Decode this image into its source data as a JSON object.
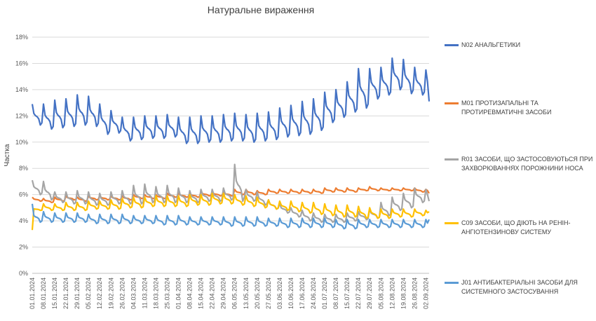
{
  "chart_data": {
    "type": "line",
    "title": "Натуральне вираження",
    "ylabel": "Частка",
    "xlabel": "",
    "ylim": [
      0,
      18
    ],
    "yticks": [
      "0%",
      "2%",
      "4%",
      "6%",
      "8%",
      "10%",
      "12%",
      "14%",
      "16%",
      "18%"
    ],
    "grid": true,
    "legend_position": "right",
    "x_start": "01.01.2024",
    "x_end": "04.09.2024",
    "x_tick_labels": [
      "01.01.2024",
      "08.01.2024",
      "15.01.2024",
      "22.01.2024",
      "29.01.2024",
      "05.02.2024",
      "12.02.2024",
      "19.02.2024",
      "26.02.2024",
      "04.03.2024",
      "11.03.2024",
      "18.03.2024",
      "25.03.2024",
      "01.04.2024",
      "08.04.2024",
      "15.04.2024",
      "22.04.2024",
      "29.04.2024",
      "06.05.2024",
      "13.05.2024",
      "20.05.2024",
      "27.05.2024",
      "03.06.2024",
      "10.06.2024",
      "17.06.2024",
      "24.06.2024",
      "01.07.2024",
      "08.07.2024",
      "15.07.2024",
      "22.07.2024",
      "29.07.2024",
      "05.08.2024",
      "12.08.2024",
      "19.08.2024",
      "26.08.2024",
      "02.09.2024"
    ],
    "weekly_x": [
      "01.01.2024",
      "08.01.2024",
      "15.01.2024",
      "22.01.2024",
      "29.01.2024",
      "05.02.2024",
      "12.02.2024",
      "19.02.2024",
      "26.02.2024",
      "04.03.2024",
      "11.03.2024",
      "18.03.2024",
      "25.03.2024",
      "01.04.2024",
      "08.04.2024",
      "15.04.2024",
      "22.04.2024",
      "29.04.2024",
      "06.05.2024",
      "13.05.2024",
      "20.05.2024",
      "27.05.2024",
      "03.06.2024",
      "10.06.2024",
      "17.06.2024",
      "24.06.2024",
      "01.07.2024",
      "08.07.2024",
      "15.07.2024",
      "22.07.2024",
      "29.07.2024",
      "05.08.2024",
      "12.08.2024",
      "19.08.2024",
      "26.08.2024",
      "02.09.2024"
    ],
    "series": [
      {
        "name": "N02 АНАЛЬГЕТИКИ",
        "color": "#4472C4",
        "weekly_base": [
          11.3,
          11.0,
          11.1,
          11.2,
          11.3,
          11.2,
          10.6,
          10.7,
          10.1,
          10.2,
          10.3,
          10.3,
          10.4,
          9.9,
          9.9,
          10.0,
          10.0,
          10.1,
          10.1,
          10.0,
          10.1,
          10.2,
          10.4,
          10.5,
          10.6,
          10.9,
          11.5,
          11.9,
          12.3,
          12.6,
          13.3,
          13.6,
          14.0,
          13.7,
          13.6,
          13.5
        ],
        "weekly_peak": [
          12.9,
          12.9,
          13.2,
          13.3,
          13.6,
          13.5,
          12.9,
          12.4,
          11.9,
          11.9,
          12.0,
          12.0,
          12.1,
          11.9,
          11.9,
          12.0,
          12.0,
          12.1,
          12.2,
          12.1,
          12.2,
          12.3,
          12.6,
          12.8,
          13.1,
          13.3,
          13.8,
          14.0,
          14.6,
          15.6,
          15.6,
          15.7,
          16.4,
          16.3,
          15.7,
          15.5
        ],
        "last_value": 13.1
      },
      {
        "name": "M01 ПРОТИЗАПАЛЬНІ ТА ПРОТИРЕВМАТИЧНІ ЗАСОБИ",
        "color": "#ED7D31",
        "weekly_base": [
          5.5,
          5.4,
          5.5,
          5.6,
          5.5,
          5.6,
          5.6,
          5.6,
          5.6,
          5.7,
          5.7,
          5.7,
          5.8,
          5.8,
          5.8,
          5.9,
          5.9,
          5.9,
          6.0,
          6.0,
          6.0,
          6.1,
          6.1,
          6.1,
          6.1,
          6.1,
          6.2,
          6.2,
          6.2,
          6.3,
          6.3,
          6.3,
          6.3,
          6.3,
          6.2,
          6.2
        ],
        "weekly_peak": [
          5.8,
          5.7,
          5.8,
          5.9,
          5.8,
          5.9,
          5.9,
          5.9,
          5.9,
          6.0,
          6.0,
          6.0,
          6.1,
          6.1,
          6.1,
          6.2,
          6.2,
          6.2,
          6.4,
          6.4,
          6.3,
          6.4,
          6.4,
          6.4,
          6.4,
          6.4,
          6.5,
          6.5,
          6.5,
          6.5,
          6.6,
          6.5,
          6.5,
          6.5,
          6.5,
          6.4
        ],
        "last_value": 6.1
      },
      {
        "name": "R01 ЗАСОБИ, ЩО ЗАСТОСОВУЮТЬСЯ ПРИ ЗАХВОРЮВАННЯХ ПОРОЖНИНИ НОСА",
        "color": "#A5A5A5",
        "weekly_base": [
          6.0,
          5.6,
          5.4,
          5.3,
          5.3,
          5.2,
          5.2,
          5.3,
          5.3,
          5.3,
          5.4,
          5.4,
          5.4,
          5.4,
          5.4,
          5.5,
          5.5,
          5.6,
          5.5,
          5.5,
          5.2,
          4.9,
          4.6,
          4.3,
          4.0,
          3.9,
          3.9,
          3.9,
          4.0,
          4.1,
          4.2,
          4.4,
          4.8,
          5.0,
          5.4,
          5.5
        ],
        "weekly_peak": [
          7.1,
          7.0,
          6.2,
          6.2,
          6.3,
          6.2,
          6.1,
          6.2,
          6.3,
          6.7,
          6.8,
          6.6,
          6.7,
          6.5,
          6.3,
          6.4,
          6.4,
          6.5,
          8.3,
          6.4,
          6.2,
          5.6,
          5.3,
          5.0,
          4.8,
          4.6,
          4.5,
          4.5,
          4.6,
          4.7,
          4.9,
          5.4,
          5.8,
          6.1,
          6.5,
          6.4
        ],
        "last_value": 5.5
      },
      {
        "name": "C09 ЗАСОБИ, ЩО ДІЮТЬ НА РЕНІН-АНГІОТЕНЗИНОВУ СИСТЕМУ",
        "color": "#FFC000",
        "weekly_base": [
          4.8,
          4.8,
          4.8,
          4.8,
          4.8,
          4.9,
          4.9,
          4.9,
          5.0,
          5.0,
          5.1,
          5.1,
          5.1,
          5.1,
          5.2,
          5.2,
          5.3,
          5.3,
          5.2,
          5.1,
          5.0,
          4.9,
          4.8,
          4.7,
          4.6,
          4.5,
          4.4,
          4.3,
          4.3,
          4.2,
          4.2,
          4.2,
          4.3,
          4.3,
          4.4,
          4.4
        ],
        "weekly_peak": [
          5.0,
          5.3,
          5.3,
          5.4,
          5.4,
          5.5,
          5.5,
          5.6,
          5.7,
          5.8,
          5.8,
          5.9,
          5.9,
          5.9,
          6.0,
          6.0,
          6.1,
          6.1,
          6.0,
          5.9,
          5.8,
          5.6,
          5.5,
          5.5,
          5.4,
          5.4,
          5.3,
          5.2,
          5.2,
          5.1,
          5.0,
          4.9,
          4.9,
          4.9,
          4.9,
          4.8
        ],
        "first_value": 3.3,
        "last_value": 4.7
      },
      {
        "name": "J01 АНТИБАКТЕРІАЛЬНІ ЗАСОБИ ДЛЯ СИСТЕМНОГО ЗАСТОСУВАННЯ",
        "color": "#5B9BD5",
        "weekly_base": [
          3.9,
          3.9,
          3.9,
          3.9,
          3.9,
          3.8,
          3.8,
          3.8,
          3.8,
          3.8,
          3.8,
          3.7,
          3.7,
          3.7,
          3.7,
          3.7,
          3.7,
          3.6,
          3.6,
          3.6,
          3.6,
          3.6,
          3.5,
          3.5,
          3.5,
          3.5,
          3.5,
          3.4,
          3.4,
          3.5,
          3.5,
          3.5,
          3.5,
          3.5,
          3.5,
          3.5
        ],
        "weekly_peak": [
          4.8,
          4.7,
          4.6,
          4.6,
          4.6,
          4.5,
          4.5,
          4.5,
          4.5,
          4.4,
          4.4,
          4.4,
          4.4,
          4.4,
          4.3,
          4.3,
          4.3,
          4.3,
          4.3,
          4.3,
          4.3,
          4.2,
          4.2,
          4.2,
          4.2,
          4.2,
          4.2,
          4.1,
          4.1,
          4.1,
          4.1,
          4.1,
          4.1,
          4.1,
          4.1,
          4.1
        ],
        "first_value": 5.3,
        "last_value": 4.1
      }
    ]
  }
}
